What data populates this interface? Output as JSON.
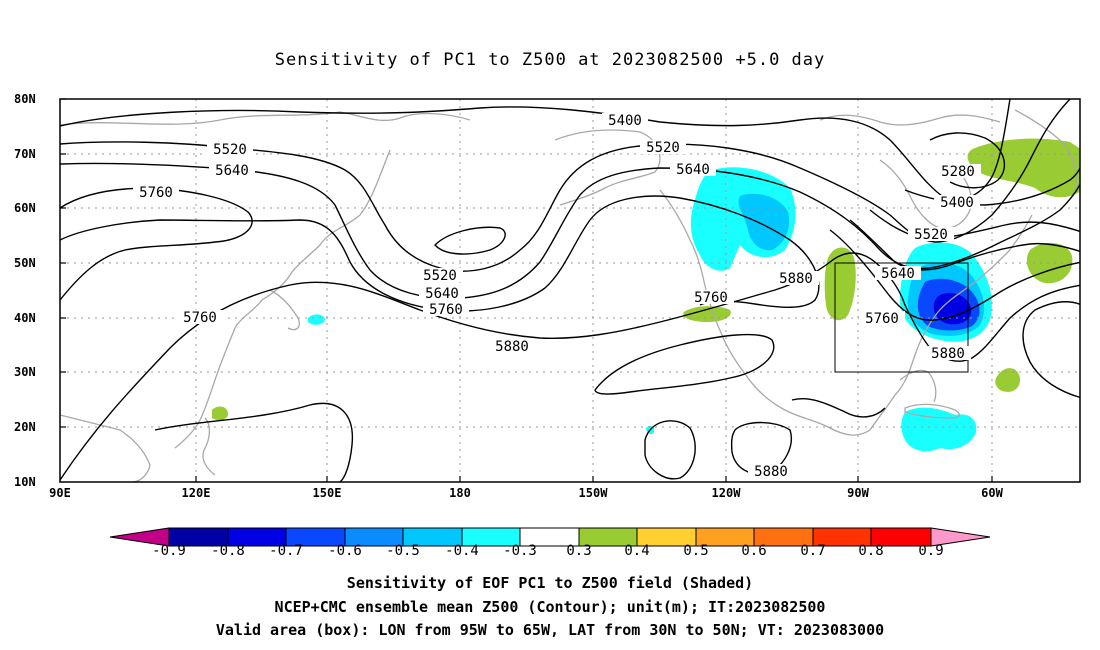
{
  "title": "Sensitivity of PC1 to Z500 at 2023082500 +5.0 day",
  "lat_labels": [
    "80N",
    "70N",
    "60N",
    "50N",
    "40N",
    "30N",
    "20N",
    "10N"
  ],
  "lon_labels": [
    "90E",
    "120E",
    "150E",
    "180",
    "150W",
    "120W",
    "90W",
    "60W"
  ],
  "contour_labels": {
    "l5400_a": "5400",
    "l5520_a": "5520",
    "l5640_a": "5640",
    "l5760_a": "5760",
    "l5520_b": "5520",
    "l5640_b": "5640",
    "l5760_b": "5760",
    "l5880_a": "5880",
    "l5520_c": "5520",
    "l5640_c": "5640",
    "l5760_c": "5760",
    "l5880_b": "5880",
    "l5280_a": "5280",
    "l5400_b": "5400",
    "l5520_d": "5520",
    "l5640_d": "5640",
    "l5760_d": "5760",
    "l5880_c": "5880",
    "l5880_d": "5880",
    "l5760_e": "5760"
  },
  "colorbar": {
    "labels": [
      "-0.9",
      "-0.8",
      "-0.7",
      "-0.6",
      "-0.5",
      "-0.4",
      "-0.3",
      "0.3",
      "0.4",
      "0.5",
      "0.6",
      "0.7",
      "0.8",
      "0.9"
    ],
    "colors": [
      "#c10087",
      "#0000a4",
      "#0000e4",
      "#0a48ff",
      "#0a8cff",
      "#00c8ff",
      "#19ffff",
      "#ffffff",
      "#99cc33",
      "#ffd030",
      "#ffa020",
      "#ff7010",
      "#ff3300",
      "#ff0000",
      "#ff99cc"
    ]
  },
  "captions": {
    "line1": "Sensitivity of EOF PC1 to Z500 field (Shaded)",
    "line2": "NCEP+CMC ensemble mean Z500 (Contour); unit(m); IT:2023082500",
    "line3": "Valid area (box): LON from 95W to 65W, LAT from 30N to 50N; VT: 2023083000"
  },
  "colors": {
    "coast": "#a8a8a8",
    "grid": "#999999",
    "contour": "#000000",
    "positive_shade": "#99cc33",
    "negative_light": "#19ffff",
    "negative_mid": "#00c8ff",
    "negative_strong": "#0a48ff",
    "negative_deep": "#0000e4"
  }
}
